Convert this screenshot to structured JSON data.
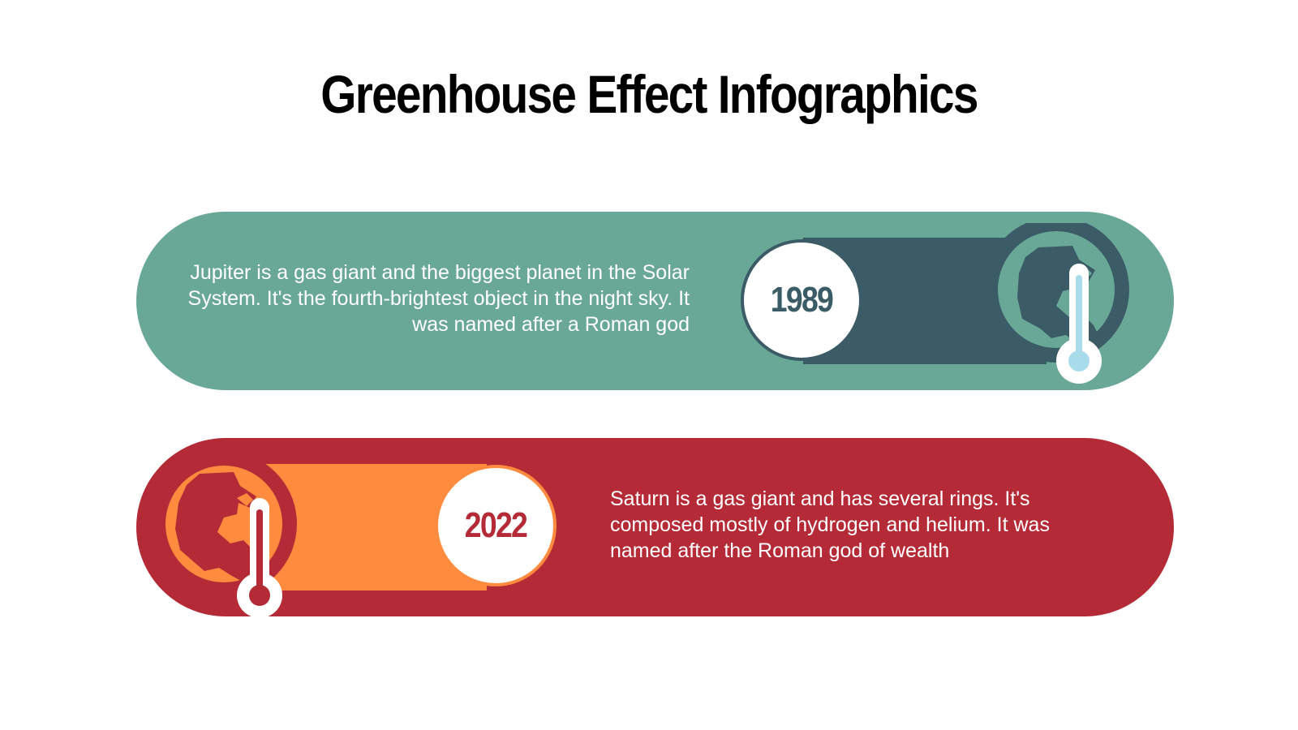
{
  "title": "Greenhouse Effect Infographics",
  "colors": {
    "green_band": "#69a897",
    "green_dark": "#3b5c66",
    "green_thermo_fill": "#a8dcea",
    "red_band": "#b42b37",
    "orange": "#ff8c3e",
    "white": "#ffffff"
  },
  "items": [
    {
      "year": "1989",
      "description": "Jupiter is a gas giant and the biggest planet in the Solar System. It's the fourth-brightest object in the night sky. It was named after a Roman god",
      "icons": [
        "earth-icon",
        "thermometer-icon"
      ]
    },
    {
      "year": "2022",
      "description": "Saturn is a gas giant and has several rings. It's composed mostly of hydrogen and helium. It was named after the Roman god of wealth",
      "icons": [
        "earth-icon",
        "thermometer-icon"
      ]
    }
  ]
}
